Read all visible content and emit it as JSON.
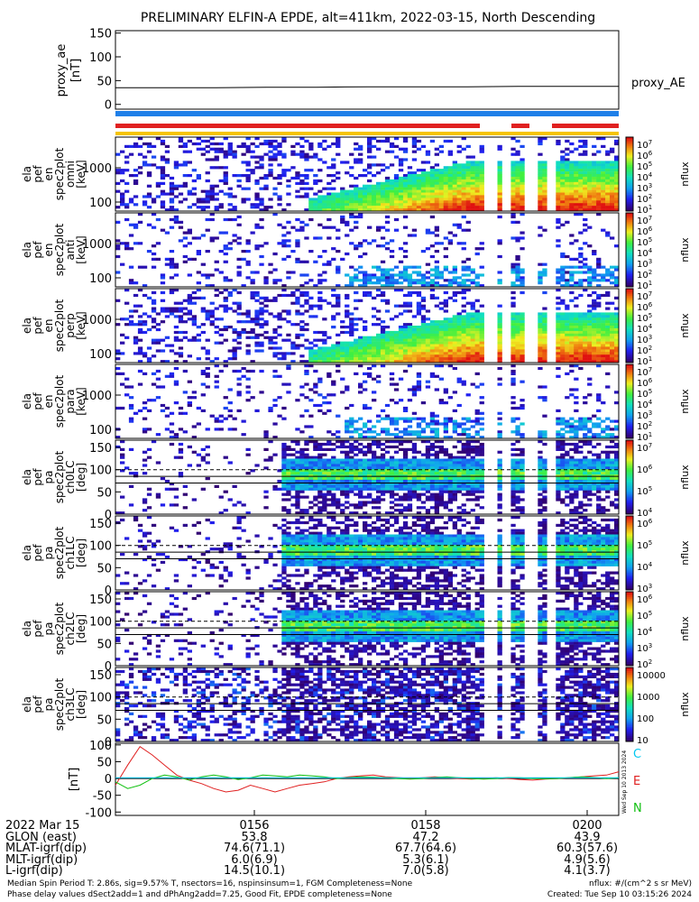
{
  "chart_data": {
    "type": "heatmap",
    "title": "PRELIMINARY ELFIN-A EPDE, alt=411km, 2022-03-15, North Descending",
    "time_ticks": [
      "0156",
      "0158",
      "0200"
    ],
    "proxy_ae": {
      "ylabel": "proxy_ae\n[nT]",
      "legend": "proxy_AE",
      "yticks": [
        "150",
        "100",
        "50",
        "0"
      ],
      "ylim": [
        -10,
        155
      ],
      "values": [
        35,
        35,
        35,
        36,
        36,
        37,
        37,
        37,
        38,
        38,
        38
      ]
    },
    "status_bars": {
      "blue": "#1e7fe8",
      "red": "#e02020",
      "yellow": "#f5c400"
    },
    "spectrograms": [
      {
        "ylabel": [
          "ela",
          "pef",
          "en",
          "spec2plot",
          "omni",
          "[keV]"
        ],
        "yticks": [
          "1000",
          "100"
        ],
        "zlabel": "nflux",
        "cbar_ticks": [
          "10^7",
          "10^6",
          "10^5",
          "10^4",
          "10^3",
          "10^2",
          "10^1"
        ],
        "kind": "energy",
        "intensity": "high"
      },
      {
        "ylabel": [
          "ela",
          "pef",
          "en",
          "spec2plot",
          "anti",
          "[keV]"
        ],
        "yticks": [
          "1000",
          "100"
        ],
        "zlabel": "nflux",
        "cbar_ticks": [
          "10^7",
          "10^6",
          "10^5",
          "10^4",
          "10^3",
          "10^2",
          "10^1"
        ],
        "kind": "energy",
        "intensity": "low"
      },
      {
        "ylabel": [
          "ela",
          "pef",
          "en",
          "spec2plot",
          "perp",
          "[keV]"
        ],
        "yticks": [
          "1000",
          "100"
        ],
        "zlabel": "nflux",
        "cbar_ticks": [
          "10^7",
          "10^6",
          "10^5",
          "10^4",
          "10^3",
          "10^2",
          "10^1"
        ],
        "kind": "energy",
        "intensity": "high"
      },
      {
        "ylabel": [
          "ela",
          "pef",
          "en",
          "spec2plot",
          "para",
          "[keV]"
        ],
        "yticks": [
          "1000",
          "100"
        ],
        "zlabel": "nflux",
        "cbar_ticks": [
          "10^7",
          "10^6",
          "10^5",
          "10^4",
          "10^3",
          "10^2",
          "10^1"
        ],
        "kind": "energy",
        "intensity": "low"
      },
      {
        "ylabel": [
          "ela",
          "pef",
          "pa",
          "spec2plot",
          "ch0LC",
          "[deg]"
        ],
        "yticks": [
          "150",
          "100",
          "50",
          "0"
        ],
        "zlabel": "nflux",
        "cbar_ticks": [
          "10^7",
          "10^6",
          "10^5",
          "10^4"
        ],
        "kind": "pitch",
        "intensity": "high"
      },
      {
        "ylabel": [
          "ela",
          "pef",
          "pa",
          "spec2plot",
          "ch1LC",
          "[deg]"
        ],
        "yticks": [
          "150",
          "100",
          "50",
          "0"
        ],
        "zlabel": "nflux",
        "cbar_ticks": [
          "10^6",
          "10^5",
          "10^4",
          "10^3"
        ],
        "kind": "pitch",
        "intensity": "high"
      },
      {
        "ylabel": [
          "ela",
          "pef",
          "pa",
          "spec2plot",
          "ch2LC",
          "[deg]"
        ],
        "yticks": [
          "150",
          "100",
          "50",
          "0"
        ],
        "zlabel": "nflux",
        "cbar_ticks": [
          "10^6",
          "10^5",
          "10^4",
          "10^3",
          "10^2"
        ],
        "kind": "pitch",
        "intensity": "mid"
      },
      {
        "ylabel": [
          "ela",
          "pef",
          "pa",
          "spec2plot",
          "ch3LC",
          "[deg]"
        ],
        "yticks": [
          "150",
          "100",
          "50",
          "0"
        ],
        "zlabel": "nflux",
        "cbar_ticks": [
          "10000",
          "1000",
          "100",
          "10"
        ],
        "kind": "pitch",
        "intensity": "low"
      }
    ],
    "bfield": {
      "ylabel": "[nT]",
      "yticks": [
        "100",
        "50",
        "0",
        "-50",
        "-100"
      ],
      "ylim": [
        -110,
        105
      ],
      "legend": [
        {
          "label": "C",
          "color": "#00c8f0"
        },
        {
          "label": "E",
          "color": "#e02020"
        },
        {
          "label": "N",
          "color": "#10c010"
        }
      ],
      "sidenote": "Wed Sep 10 2013 2024",
      "series": [
        {
          "name": "E",
          "color": "#e02020",
          "values": [
            -20,
            40,
            95,
            70,
            40,
            10,
            -5,
            -15,
            -30,
            -40,
            -35,
            -20,
            -30,
            -40,
            -30,
            -20,
            -15,
            -10,
            0,
            5,
            8,
            10,
            5,
            3,
            0,
            2,
            5,
            2,
            0,
            -2,
            0,
            2,
            0,
            -3,
            -5,
            -2,
            0,
            2,
            5,
            8,
            10,
            20
          ]
        },
        {
          "name": "N",
          "color": "#10c010",
          "values": [
            -10,
            -30,
            -20,
            0,
            10,
            5,
            -5,
            5,
            10,
            5,
            -3,
            2,
            10,
            8,
            5,
            10,
            8,
            5,
            0,
            3,
            5,
            4,
            2,
            0,
            -2,
            0,
            3,
            5,
            2,
            0,
            -2,
            0,
            3,
            2,
            0,
            -1,
            0,
            3,
            5,
            3,
            0,
            2
          ]
        },
        {
          "name": "C",
          "color": "#00c8f0",
          "values": [
            2,
            2,
            2,
            2,
            2,
            2,
            2,
            2,
            2,
            2,
            2,
            2,
            2,
            2,
            2,
            2,
            2,
            2,
            2,
            2,
            2,
            2,
            2,
            2,
            2,
            2,
            2,
            2,
            2,
            2,
            2,
            2,
            2,
            2,
            2,
            2,
            2,
            2,
            2,
            2,
            2,
            2
          ]
        }
      ]
    }
  },
  "ephemeris": {
    "rows": [
      {
        "label": "2022 Mar 15",
        "values": [
          "0156",
          "0158",
          "0200"
        ]
      },
      {
        "label": "GLON (east)",
        "values": [
          "53.8",
          "47.2",
          "43.9"
        ]
      },
      {
        "label": "MLAT-igrf(dip)",
        "values": [
          "74.6(71.1)",
          "67.7(64.6)",
          "60.3(57.6)"
        ]
      },
      {
        "label": "MLT-igrf(dip)",
        "values": [
          "6.0(6.9)",
          "5.3(6.1)",
          "4.9(5.6)"
        ]
      },
      {
        "label": "L-igrf(dip)",
        "values": [
          "14.5(10.1)",
          "7.0(5.8)",
          "4.1(3.7)"
        ]
      }
    ]
  },
  "footer": {
    "left1": "Median Spin Period T: 2.86s, sig=9.57% T, nsectors=16, nspinsinsum=1, FGM Completeness=None",
    "left2": "Phase delay values dSect2add=1 and dPhAng2add=7.25, Good Fit, EPDE completeness=None",
    "right1": "nflux: #/(cm^2 s sr MeV)",
    "right2": "Created: Tue Sep 10 03:15:26 2024"
  }
}
